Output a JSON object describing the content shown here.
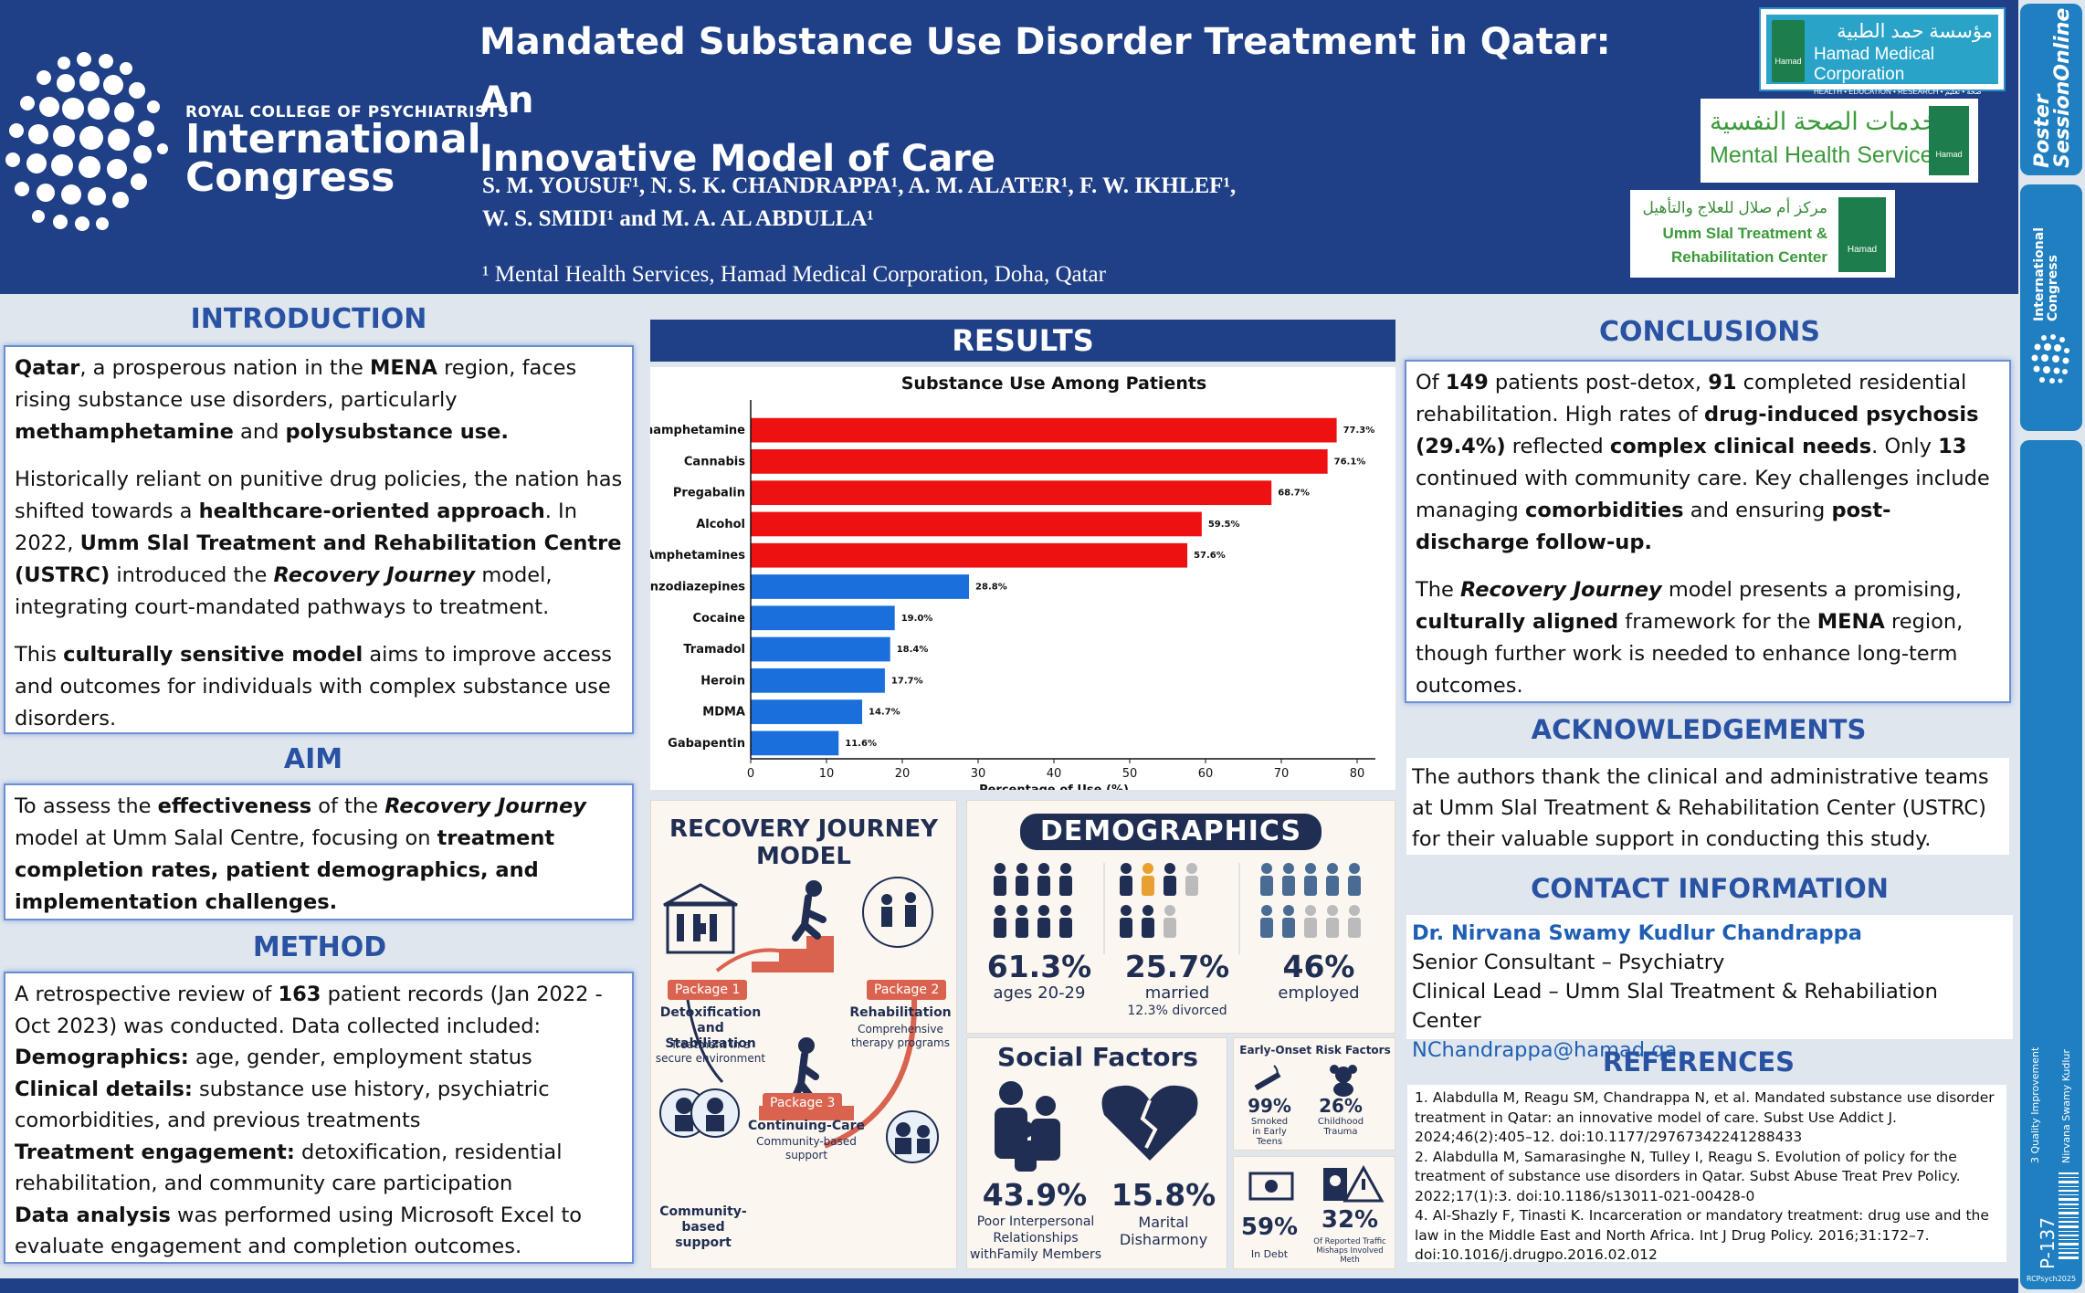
{
  "header": {
    "rcp_small": "ROYAL COLLEGE OF PSYCHIATRISTS",
    "rcp_line1": "International",
    "rcp_line2": "Congress",
    "title_line1": "Mandated Substance Use Disorder Treatment in Qatar: An",
    "title_line2": "Innovative Model of Care",
    "authors_line1": "S. M. YOUSUF¹,  N. S. K. CHANDRAPPA¹, A. M. ALATER¹, F. W. IKHLEF¹,",
    "authors_line2": "W. S. SMIDI¹ and M. A. AL ABDULLA¹",
    "affiliation": "¹ Mental Health Services, Hamad Medical Corporation, Doha, Qatar",
    "hmc_ar": "مؤسسة حمد الطبية",
    "hmc_en": "Hamad Medical Corporation",
    "hmc_sub": "HEALTH • EDUCATION • RESEARCH   صحة • تعليم • بحوث",
    "hamad_badge": "Hamad",
    "mhs_ar": "خدمات الصحة النفسية",
    "mhs_en": "Mental Health Service",
    "usc_ar": "مركز أم صلال للعلاج والتأهيل",
    "usc_en1": "Umm Slal Treatment &",
    "usc_en2": "Rehabilitation Center"
  },
  "introduction": {
    "title": "INTRODUCTION",
    "p1": [
      {
        "t": "Qatar",
        "s": "b"
      },
      {
        "t": ", a prosperous nation in the ",
        "s": ""
      },
      {
        "t": "MENA",
        "s": "b"
      },
      {
        "t": " region, faces rising substance use disorders, particularly ",
        "s": ""
      },
      {
        "t": "methamphetamine",
        "s": "b"
      },
      {
        "t": " and ",
        "s": ""
      },
      {
        "t": "polysubstance use.",
        "s": "b"
      }
    ],
    "p2": [
      {
        "t": "Historically reliant on punitive drug policies, the nation has shifted towards a ",
        "s": ""
      },
      {
        "t": "healthcare-oriented approach",
        "s": "b"
      },
      {
        "t": ". In 2022, ",
        "s": ""
      },
      {
        "t": "Umm Slal Treatment and Rehabilitation Centre (USTRC)",
        "s": "b"
      },
      {
        "t": " introduced the ",
        "s": ""
      },
      {
        "t": "Recovery Journey",
        "s": "bi"
      },
      {
        "t": " model, integrating court-mandated pathways to treatment.",
        "s": ""
      }
    ],
    "p3": [
      {
        "t": "This ",
        "s": ""
      },
      {
        "t": "culturally sensitive model",
        "s": "b"
      },
      {
        "t": " aims to improve access and outcomes for individuals with complex substance use disorders.",
        "s": ""
      }
    ]
  },
  "aim": {
    "title": "AIM",
    "p1": [
      {
        "t": "To assess the ",
        "s": ""
      },
      {
        "t": "effectiveness",
        "s": "b"
      },
      {
        "t": " of the ",
        "s": ""
      },
      {
        "t": "Recovery Journey",
        "s": "bi"
      },
      {
        "t": " model at Umm Salal Centre, focusing on ",
        "s": ""
      },
      {
        "t": "treatment completion rates, patient demographics, and implementation challenges.",
        "s": "b"
      }
    ]
  },
  "method": {
    "title": "METHOD",
    "p1": [
      {
        "t": "A retrospective review of ",
        "s": ""
      },
      {
        "t": "163",
        "s": "b"
      },
      {
        "t": " patient records (Jan 2022 - Oct 2023) was conducted. Data collected included:",
        "s": ""
      }
    ],
    "l1": [
      {
        "t": "Demographics:",
        "s": "b"
      },
      {
        "t": " age, gender, employment status",
        "s": ""
      }
    ],
    "l2": [
      {
        "t": "Clinical details:",
        "s": "b"
      },
      {
        "t": " substance use history, psychiatric comorbidities, and previous treatments",
        "s": ""
      }
    ],
    "l3": [
      {
        "t": "Treatment engagement:",
        "s": "b"
      },
      {
        "t": " detoxification, residential rehabilitation, and community care participation",
        "s": ""
      }
    ],
    "l4": [
      {
        "t": "Data analysis",
        "s": "b"
      },
      {
        "t": " was performed using Microsoft Excel to evaluate engagement and completion outcomes.",
        "s": ""
      }
    ]
  },
  "results": {
    "title": "RESULTS"
  },
  "chart_data": {
    "type": "bar",
    "orientation": "horizontal",
    "title": "Substance Use Among Patients",
    "xlabel": "Percentage of Use (%)",
    "ylabel": "",
    "xlim": [
      0,
      80
    ],
    "xticks": [
      0,
      10,
      20,
      30,
      40,
      50,
      60,
      70,
      80
    ],
    "categories": [
      "Methamphetamine",
      "Cannabis",
      "Pregabalin",
      "Alcohol",
      "Amphetamines",
      "Benzodiazepines",
      "Cocaine",
      "Tramadol",
      "Heroin",
      "MDMA",
      "Gabapentin"
    ],
    "values": [
      77.3,
      76.1,
      68.7,
      59.5,
      57.6,
      28.8,
      19.0,
      18.4,
      17.7,
      14.7,
      11.6
    ],
    "labels": [
      "77.3%",
      "76.1%",
      "68.7%",
      "59.5%",
      "57.6%",
      "28.8%",
      "19.0%",
      "18.4%",
      "17.7%",
      "14.7%",
      "11.6%"
    ],
    "colors": [
      "#ee1111",
      "#ee1111",
      "#ee1111",
      "#ee1111",
      "#ee1111",
      "#1a6fdc",
      "#1a6fdc",
      "#1a6fdc",
      "#1a6fdc",
      "#1a6fdc",
      "#1a6fdc"
    ],
    "grid": false
  },
  "recovery": {
    "title_line1": "RECOVERY JOURNEY",
    "title_line2": "MODEL",
    "pkg1": "Package 1",
    "pkg2": "Package 2",
    "pkg3": "Package 3",
    "detox_l1": "Detoxification",
    "detox_l2": "and Stabilization",
    "detox_sub1": "Treatment in a",
    "detox_sub2": "secure environment",
    "rehab": "Rehabilitation",
    "rehab_sub1": "Comprehensive",
    "rehab_sub2": "therapy programs",
    "cc": "Continuing-Care",
    "cc_sub1": "Community-based",
    "cc_sub2": "support",
    "community_l1": "Community-",
    "community_l2": "based support"
  },
  "demographics": {
    "title": "DEMOGRAPHICS",
    "s1_val": "61.3%",
    "s1_lbl": "ages 20-29",
    "s2_val": "25.7%",
    "s2_lbl": "married",
    "s2_sub": "12.3% divorced",
    "s3_val": "46%",
    "s3_lbl": "employed"
  },
  "social": {
    "title": "Social Factors",
    "s1_val": "43.9%",
    "s1_l1": "Poor Interpersonal",
    "s1_l2": "Relationships",
    "s1_l3": "withFamily Members",
    "s2_val": "15.8%",
    "s2_l1": "Marital",
    "s2_l2": "Disharmony"
  },
  "risk": {
    "title": "Early-Onset Risk Factors",
    "r1_val": "99%",
    "r1_l1": "Smoked",
    "r1_l2": "in Early",
    "r1_l3": "Teens",
    "r2_val": "26%",
    "r2_l1": "Childhood",
    "r2_l2": "Trauma",
    "r3_val": "59%",
    "r3_l1": "In Debt",
    "r4_val": "32%",
    "r4_l1": "Of Reported Traffic",
    "r4_l2": "Mishaps Involved",
    "r4_l3": "Meth"
  },
  "conclusions": {
    "title": "CONCLUSIONS",
    "p1": [
      {
        "t": "Of ",
        "s": ""
      },
      {
        "t": "149",
        "s": "b"
      },
      {
        "t": " patients post-detox, ",
        "s": ""
      },
      {
        "t": "91",
        "s": "b"
      },
      {
        "t": " completed residential rehabilitation. High rates of ",
        "s": ""
      },
      {
        "t": "drug-induced psychosis (29.4%)",
        "s": "b"
      },
      {
        "t": " reflected ",
        "s": ""
      },
      {
        "t": "complex clinical needs",
        "s": "b"
      },
      {
        "t": ". Only ",
        "s": ""
      },
      {
        "t": "13",
        "s": "b"
      },
      {
        "t": " continued with community care. Key challenges include managing ",
        "s": ""
      },
      {
        "t": "comorbidities",
        "s": "b"
      },
      {
        "t": " and ensuring ",
        "s": ""
      },
      {
        "t": "post-discharge follow-up.",
        "s": "b"
      }
    ],
    "p2": [
      {
        "t": "The ",
        "s": ""
      },
      {
        "t": "Recovery Journey",
        "s": "bi"
      },
      {
        "t": " model presents a promising, ",
        "s": ""
      },
      {
        "t": "culturally aligned",
        "s": "b"
      },
      {
        "t": " framework for the ",
        "s": ""
      },
      {
        "t": "MENA",
        "s": "b"
      },
      {
        "t": " region, though further work is needed to enhance long-term outcomes.",
        "s": ""
      }
    ]
  },
  "acknowledgements": {
    "title": "ACKNOWLEDGEMENTS",
    "text": "The authors thank the clinical and administrative teams at Umm Slal Treatment & Rehabilitation Center (USTRC) for their valuable support in conducting this study."
  },
  "contact": {
    "title": "CONTACT INFORMATION",
    "name": "Dr. Nirvana Swamy Kudlur Chandrappa",
    "role": "Senior Consultant – Psychiatry",
    "lead": "Clinical Lead – Umm Slal Treatment & Rehabiliation Center",
    "email": "NChandrappa@hamad.qa"
  },
  "references": {
    "title": "REFERENCES",
    "items": [
      "1. Alabdulla M, Reagu SM, Chandrappa N, et al. Mandated substance use disorder treatment in Qatar: an innovative model of care. Subst Use Addict J. 2024;46(2):405–12. doi:10.1177/29767342241288433",
      "2. Alabdulla M, Samarasinghe N, Tulley I, Reagu S. Evolution of policy for the treatment of substance use disorders in Qatar. Subst Abuse Treat Prev Policy. 2022;17(1):3. doi:10.1186/s13011-021-00428-0",
      "4. Al-Shazly F, Tinasti K. Incarceration or mandatory treatment: drug use and the law in the Middle East and North Africa. Int J Drug Policy. 2016;31:172–7. doi:10.1016/j.drugpo.2016.02.012"
    ]
  },
  "sidebar": {
    "pso_line1": "Poster",
    "pso_line2": "SessionOnline",
    "ic_line1": "International",
    "ic_line2": "Congress",
    "track": "3 Quality Improvement",
    "presenter": "Nirvana Swamy Kudlur",
    "poster_id": "P-137",
    "event": "RCPsych2025"
  }
}
